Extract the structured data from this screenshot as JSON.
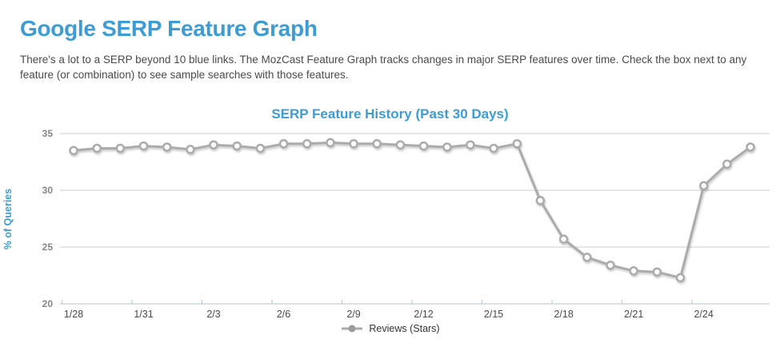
{
  "page": {
    "title": "Google SERP Feature Graph",
    "description": "There's a lot to a SERP beyond 10 blue links. The MozCast Feature Graph tracks changes in major SERP features over time. Check the box next to any feature (or combination) to see sample searches with those features."
  },
  "colors": {
    "accent_blue": "#3d9cd4",
    "body_text": "#4a4a4a",
    "grid_gray": "#cccccc",
    "axis_line": "#b3c3d1",
    "series_gray": "#ababab",
    "marker_fill": "#ffffff",
    "legend_dot": "#9b9b9b",
    "y_tick_label": "#858585",
    "x_tick_label": "#4a4a4a"
  },
  "chart_data": {
    "type": "line",
    "title": "SERP Feature History (Past 30 Days)",
    "xlabel": "",
    "ylabel": "% of Queries",
    "ylim": [
      20,
      35
    ],
    "yticks": [
      20,
      25,
      30,
      35
    ],
    "grid": true,
    "legend_position": "bottom",
    "xtick_every": 3,
    "x": [
      "1/28",
      "1/29",
      "1/30",
      "1/31",
      "2/1",
      "2/2",
      "2/3",
      "2/4",
      "2/5",
      "2/6",
      "2/7",
      "2/8",
      "2/9",
      "2/10",
      "2/11",
      "2/12",
      "2/13",
      "2/14",
      "2/15",
      "2/16",
      "2/17",
      "2/18",
      "2/19",
      "2/20",
      "2/21",
      "2/22",
      "2/23",
      "2/24",
      "2/25",
      "2/26"
    ],
    "xtick_labels": [
      "1/28",
      "1/31",
      "2/3",
      "2/6",
      "2/9",
      "2/12",
      "2/15",
      "2/18",
      "2/21",
      "2/24"
    ],
    "series": [
      {
        "name": "Reviews (Stars)",
        "color": "#ababab",
        "marker": "open-circle",
        "values": [
          33.5,
          33.7,
          33.7,
          33.9,
          33.8,
          33.6,
          34.0,
          33.9,
          33.7,
          34.1,
          34.1,
          34.2,
          34.1,
          34.1,
          34.0,
          33.9,
          33.8,
          34.0,
          33.7,
          34.1,
          29.1,
          25.7,
          24.1,
          23.4,
          22.9,
          22.8,
          22.3,
          30.4,
          32.3,
          33.8
        ]
      }
    ]
  }
}
